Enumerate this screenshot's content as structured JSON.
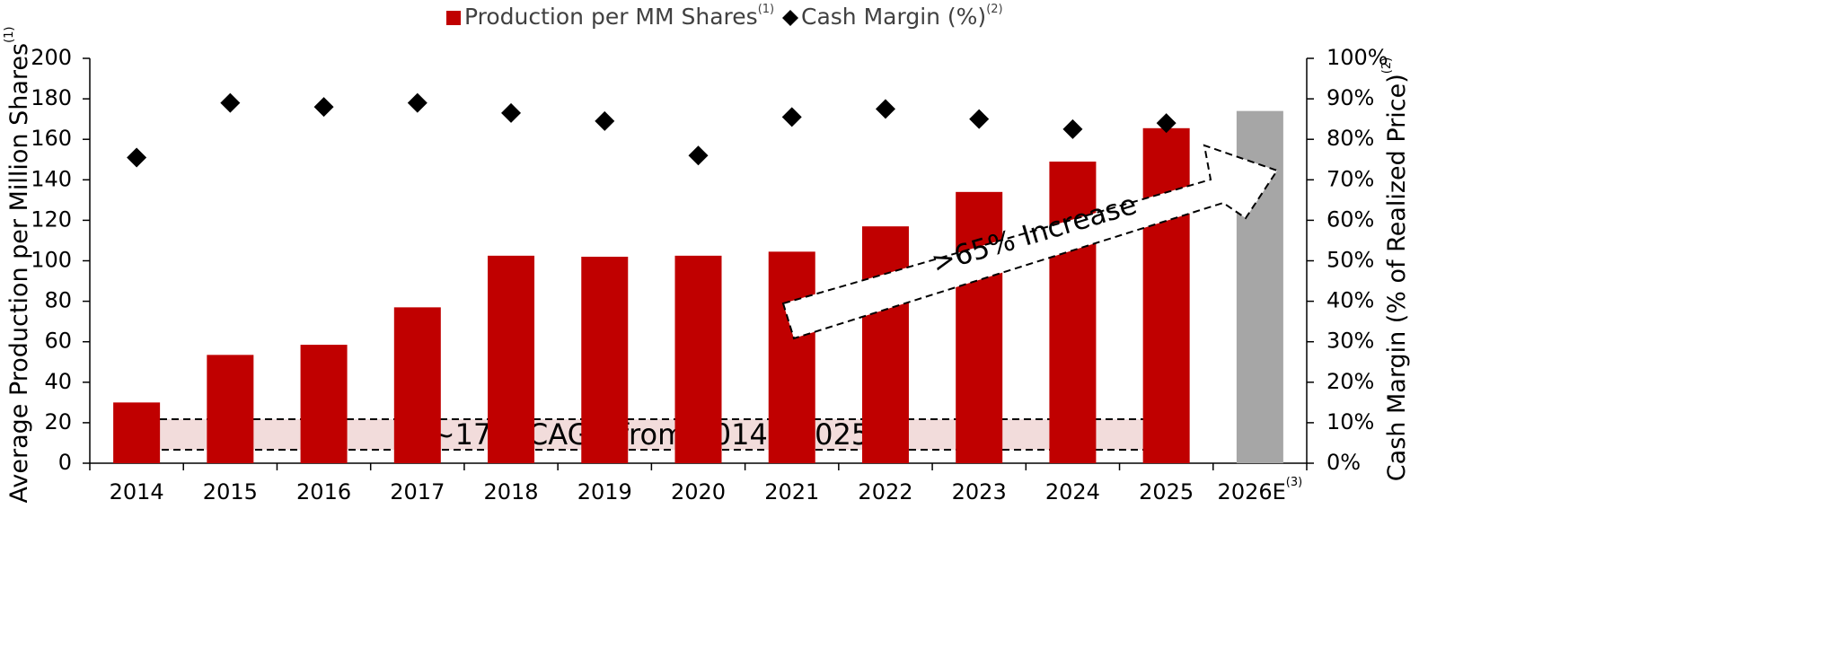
{
  "chart_data": {
    "type": "bar",
    "categories": [
      "2014",
      "2015",
      "2016",
      "2017",
      "2018",
      "2019",
      "2020",
      "2021",
      "2022",
      "2023",
      "2024",
      "2025",
      "2026E"
    ],
    "category_superscripts": [
      null,
      null,
      null,
      null,
      null,
      null,
      null,
      null,
      null,
      null,
      null,
      null,
      "(3)"
    ],
    "series": [
      {
        "name": "Production per MM Shares",
        "superscript": "(1)",
        "type": "bar",
        "colors": [
          "#c00000",
          "#c00000",
          "#c00000",
          "#c00000",
          "#c00000",
          "#c00000",
          "#c00000",
          "#c00000",
          "#c00000",
          "#c00000",
          "#c00000",
          "#c00000",
          "#a6a6a6"
        ],
        "color": "#c00000",
        "values": [
          30,
          53.5,
          58.5,
          77,
          102.5,
          102,
          102.5,
          104.5,
          117,
          134,
          149,
          165.5,
          174
        ]
      },
      {
        "name": "Cash Margin (%)",
        "superscript": "(2)",
        "type": "scatter",
        "axis": "y2",
        "color": "#000000",
        "values": [
          75.5,
          89,
          88,
          89,
          86.5,
          84.5,
          76,
          85.5,
          87.5,
          85,
          82.5,
          84,
          null
        ]
      }
    ],
    "y_label": "Average Production per Million Shares",
    "y_label_superscript": "(1)",
    "y2_label": "Cash Margin (% of Realized Price)",
    "y2_label_superscript": "(2)",
    "ylim": [
      0,
      200
    ],
    "yticks": [
      0,
      20,
      40,
      60,
      80,
      100,
      120,
      140,
      160,
      180,
      200
    ],
    "y2lim": [
      0,
      100
    ],
    "y2ticks": [
      {
        "value": 0,
        "label": "0%"
      },
      {
        "value": 10,
        "label": "10%"
      },
      {
        "value": 20,
        "label": "20%"
      },
      {
        "value": 30,
        "label": "30%"
      },
      {
        "value": 40,
        "label": "40%"
      },
      {
        "value": 50,
        "label": "50%"
      },
      {
        "value": 60,
        "label": "60%"
      },
      {
        "value": 70,
        "label": "70%"
      },
      {
        "value": 80,
        "label": "80%"
      },
      {
        "value": 90,
        "label": "90%"
      },
      {
        "value": 100,
        "label": "100%"
      }
    ],
    "legend": "top",
    "annotations": [
      "~17% CAGR from 2014 - 2025",
      ">65% Increase"
    ]
  }
}
